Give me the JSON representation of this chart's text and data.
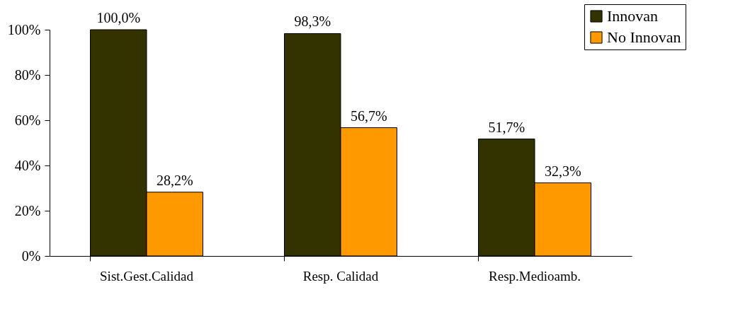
{
  "chart_data": {
    "type": "bar",
    "categories": [
      "Sist.Gest.Calidad",
      "Resp. Calidad",
      "Resp.Medioamb."
    ],
    "series": [
      {
        "name": "Innovan",
        "color": "#333300",
        "values": [
          100.0,
          98.3,
          51.7
        ],
        "value_labels": [
          "100,0%",
          "98,3%",
          "51,7%"
        ]
      },
      {
        "name": "No Innovan",
        "color": "#ff9900",
        "values": [
          28.2,
          56.7,
          32.3
        ],
        "value_labels": [
          "28,2%",
          "56,7%",
          "32,3%"
        ]
      }
    ],
    "ylim": [
      0,
      100
    ],
    "yticks": [
      {
        "value": 0,
        "label": "0%"
      },
      {
        "value": 20,
        "label": "20%"
      },
      {
        "value": 40,
        "label": "40%"
      },
      {
        "value": 60,
        "label": "60%"
      },
      {
        "value": 80,
        "label": "80%"
      },
      {
        "value": 100,
        "label": "100%"
      }
    ],
    "grid": false,
    "legend": "top right"
  }
}
